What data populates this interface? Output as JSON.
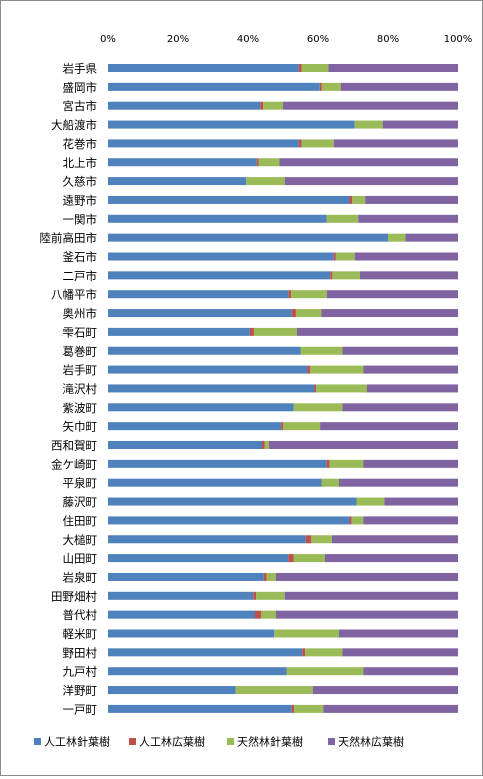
{
  "chart_data": {
    "type": "bar",
    "orientation": "horizontal",
    "stacked": "percent",
    "xlim": [
      0,
      100
    ],
    "x_ticks": [
      "0%",
      "20%",
      "40%",
      "60%",
      "80%",
      "100%"
    ],
    "grid": false,
    "legend_position": "bottom",
    "categories": [
      "岩手県",
      "盛岡市",
      "宮古市",
      "大船渡市",
      "花巻市",
      "北上市",
      "久慈市",
      "遠野市",
      "一関市",
      "陸前高田市",
      "釜石市",
      "二戸市",
      "八幡平市",
      "奥州市",
      "雫石町",
      "葛巻町",
      "岩手町",
      "滝沢村",
      "紫波町",
      "矢巾町",
      "西和賀町",
      "金ケ崎町",
      "平泉町",
      "藤沢町",
      "住田町",
      "大槌町",
      "山田町",
      "岩泉町",
      "田野畑村",
      "普代村",
      "軽米町",
      "野田村",
      "九戸村",
      "洋野町",
      "一戸町"
    ],
    "series": [
      {
        "name": "人工林針葉樹",
        "color": "#4f81bd",
        "values": [
          54.5,
          60.5,
          43.5,
          70.5,
          54.5,
          42.5,
          39.5,
          69.0,
          62.5,
          80.0,
          64.5,
          63.5,
          51.5,
          52.5,
          40.5,
          55.0,
          57.0,
          59.0,
          53.0,
          49.5,
          44.0,
          62.5,
          61.0,
          71.0,
          69.0,
          56.5,
          51.5,
          44.5,
          41.5,
          42.0,
          47.5,
          55.5,
          51.0,
          36.5,
          52.5
        ]
      },
      {
        "name": "人工林広葉樹",
        "color": "#c0504d",
        "values": [
          0.8,
          0.6,
          0.8,
          0.0,
          0.8,
          0.5,
          0.0,
          0.8,
          0.0,
          0.0,
          0.6,
          0.6,
          0.8,
          1.2,
          1.2,
          0.0,
          0.8,
          0.5,
          0.0,
          0.6,
          0.8,
          0.8,
          0.0,
          0.0,
          0.6,
          1.5,
          1.5,
          0.8,
          0.8,
          1.8,
          0.0,
          0.8,
          0.0,
          0.0,
          0.7
        ]
      },
      {
        "name": "天然林針葉樹",
        "color": "#9bbb59",
        "values": [
          7.7,
          5.4,
          5.7,
          8.0,
          9.2,
          6.0,
          11.0,
          3.7,
          9.0,
          5.0,
          5.4,
          7.9,
          10.2,
          7.3,
          12.3,
          12.0,
          15.2,
          14.5,
          14.0,
          10.5,
          1.2,
          9.7,
          5.0,
          8.0,
          3.4,
          6.0,
          9.0,
          2.7,
          8.2,
          4.2,
          18.5,
          10.7,
          22.0,
          22.0,
          8.3
        ]
      },
      {
        "name": "天然林広葉樹",
        "color": "#8064a2",
        "values": [
          37.0,
          33.5,
          50.0,
          21.5,
          35.5,
          51.0,
          49.5,
          26.5,
          28.5,
          15.0,
          29.5,
          28.0,
          37.5,
          39.0,
          46.0,
          33.0,
          27.0,
          26.0,
          33.0,
          39.4,
          54.0,
          27.0,
          34.0,
          21.0,
          27.0,
          36.0,
          38.0,
          52.0,
          49.5,
          52.0,
          34.0,
          33.0,
          27.0,
          41.5,
          38.5
        ]
      }
    ]
  }
}
